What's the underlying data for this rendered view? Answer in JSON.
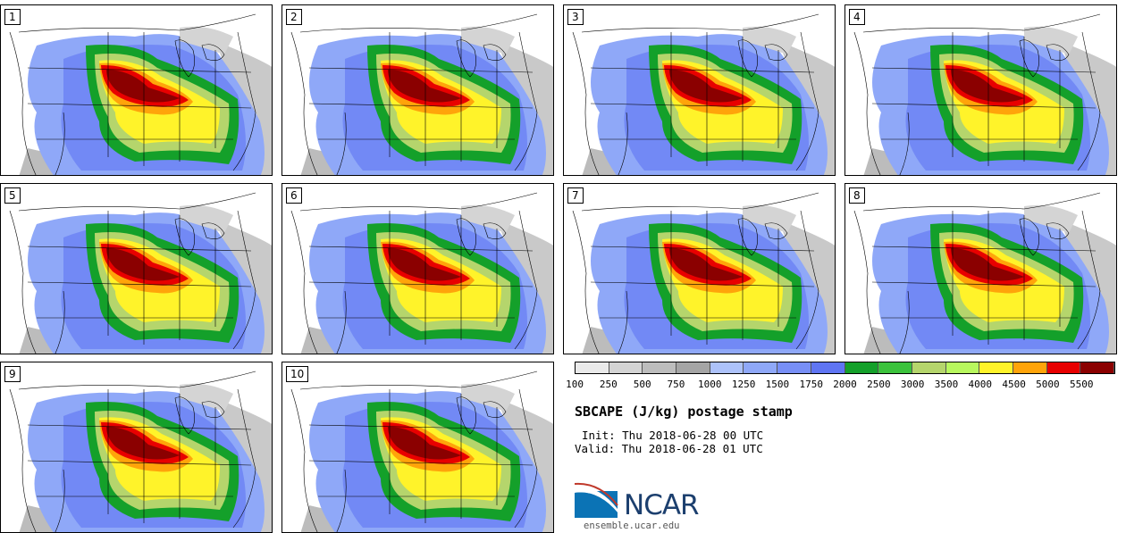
{
  "panels": [
    {
      "label": "1"
    },
    {
      "label": "2"
    },
    {
      "label": "3"
    },
    {
      "label": "4"
    },
    {
      "label": "5"
    },
    {
      "label": "6"
    },
    {
      "label": "7"
    },
    {
      "label": "8"
    },
    {
      "label": "9"
    },
    {
      "label": "10"
    }
  ],
  "colorbar": {
    "colors": [
      "#eaeaea",
      "#d4d4d4",
      "#bdbdbd",
      "#a5a5a5",
      "#adc2fa",
      "#8fa8f8",
      "#788ff6",
      "#5f75f3",
      "#14a02a",
      "#3bc23c",
      "#b5d56c",
      "#b8f75e",
      "#fff32a",
      "#ffa40a",
      "#e80000",
      "#8b0000"
    ],
    "labels": [
      "100",
      "250",
      "500",
      "750",
      "1000",
      "1250",
      "1500",
      "1750",
      "2000",
      "2500",
      "3000",
      "3500",
      "4000",
      "4500",
      "5000",
      "5500"
    ]
  },
  "title": "SBCAPE (J/kg) postage stamp",
  "init": "Init: Thu 2018-06-28 00 UTC",
  "valid": "Valid: Thu 2018-06-28 01 UTC",
  "logo_text": "NCAR",
  "website": "ensemble.ucar.edu"
}
